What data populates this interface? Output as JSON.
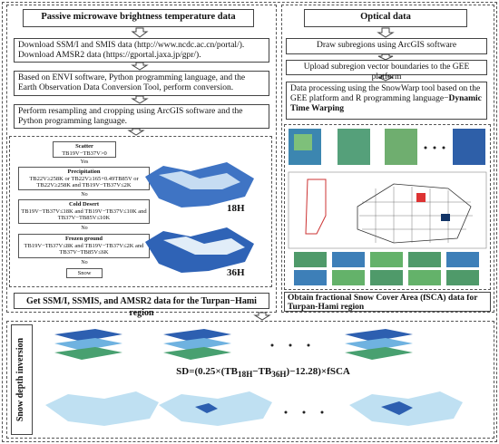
{
  "left": {
    "title": "Passive microwave brightness temperature data",
    "steps": [
      [
        "Download SSM/I and SMIS data (http://www.ncdc.ac.cn/portal/).",
        "Download AMSR2 data (https://gportal.jaxa.jp/gpr/)."
      ],
      "Based on ENVI software, Python programming language, and the Earth Observation Data Conversion Tool, perform conversion.",
      "Perform resampling and cropping using ArcGIS software and the Python programming language."
    ],
    "flowchart": [
      {
        "title": "Scatter",
        "rule": "TB19V−TB37V>0",
        "branch": "Yes"
      },
      {
        "title": "Precipitation",
        "rule": "TB22V≥258K or TB22V≥165+0.49TB85V or TB22V≥258K and TB19V−TB37V≤2K",
        "branch": "No"
      },
      {
        "title": "Cold Desert",
        "rule": "TB19V−TB37V≤18K and TB19V−TB37V≤10K and TB37V−TB85V≤10K",
        "branch": "No"
      },
      {
        "title": "Frozen ground",
        "rule": "TB19V−TB37V≤8K and TB19V−TB37V≤2K and TB37V−TB85V≤6K",
        "branch": "No"
      },
      {
        "title": "Snow"
      }
    ],
    "map_labels": [
      "18H",
      "36H"
    ],
    "result": "Get SSM/I, SSMIS, and AMSR2 data for the Turpan−Hami region"
  },
  "right": {
    "title": "Optical data",
    "steps": [
      "Draw subregions using ArcGIS software",
      "Upload subregion vector boundaries to the GEE platform",
      {
        "text": "Data processing using the SnowWarp tool based on the GEE platform and R programming language−",
        "emphasis": "Dynamic Time Warping"
      }
    ],
    "result": "Obtain fractional Snow Cover Area (fSCA) data for Turpan-Hami region"
  },
  "bottom": {
    "title": "Snow depth inversion",
    "formula": [
      "SD=(0.25×(TB",
      "18H",
      "−TB",
      "36H",
      ")−12.28)×fSCA"
    ]
  }
}
